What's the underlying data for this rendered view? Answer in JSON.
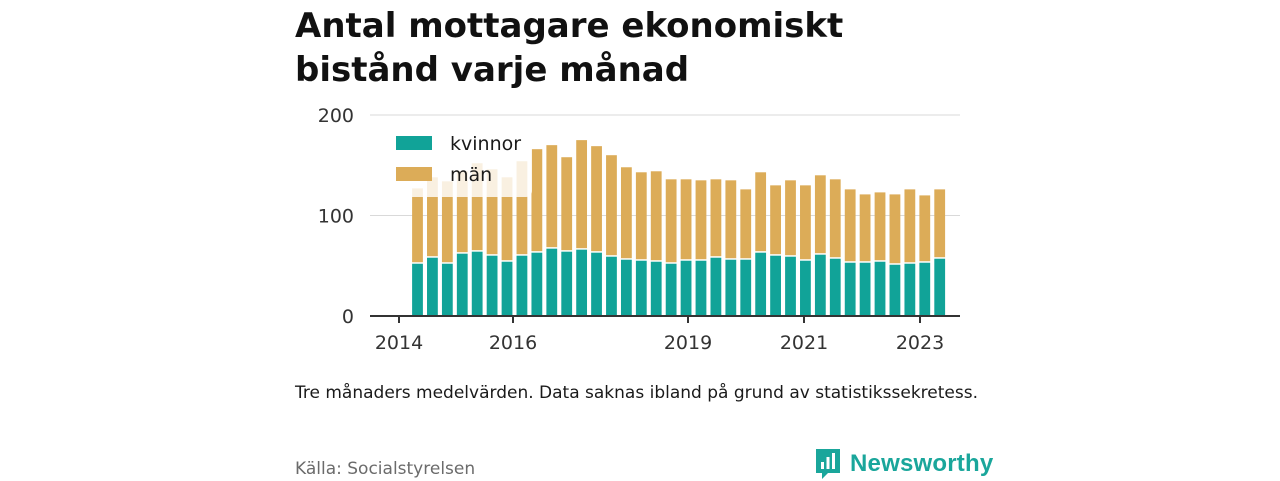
{
  "title": "Antal mottagare ekonomiskt bistånd varje månad",
  "note": "Tre månaders medelvärden. Data saknas ibland på grund av statistikssekretess.",
  "source": "Källa: Socialstyrelsen",
  "brand": {
    "name": "Newsworthy",
    "icon": "newsworthy-logo-icon",
    "color": "#1aa69b"
  },
  "colors": {
    "kvinnor": "#11a398",
    "man": "#dcac58",
    "axis": "#333333",
    "grid": "#d9d9d9"
  },
  "chart_data": {
    "type": "bar",
    "stacked": true,
    "x_ticks": [
      "2014",
      "2016",
      "2019",
      "2021",
      "2023"
    ],
    "y_ticks": [
      0,
      100,
      200
    ],
    "ylim": [
      0,
      200
    ],
    "grid": true,
    "legend": {
      "placement": "top-left",
      "entries": [
        "kvinnor",
        "män"
      ]
    },
    "series": [
      {
        "name": "kvinnor",
        "color": "#11a398",
        "values": [
          52,
          58,
          52,
          62,
          64,
          60,
          54,
          60,
          63,
          67,
          64,
          66,
          63,
          59,
          56,
          55,
          54,
          52,
          55,
          55,
          58,
          56,
          56,
          63,
          60,
          59,
          55,
          61,
          57,
          53,
          53,
          54,
          51,
          52,
          53,
          57
        ]
      },
      {
        "name": "män",
        "color": "#dcac58",
        "values": [
          75,
          80,
          82,
          82,
          88,
          86,
          84,
          94,
          103,
          103,
          94,
          109,
          106,
          101,
          92,
          88,
          90,
          84,
          81,
          80,
          78,
          79,
          70,
          80,
          70,
          76,
          75,
          79,
          79,
          73,
          68,
          69,
          70,
          74,
          67,
          69
        ]
      }
    ]
  }
}
